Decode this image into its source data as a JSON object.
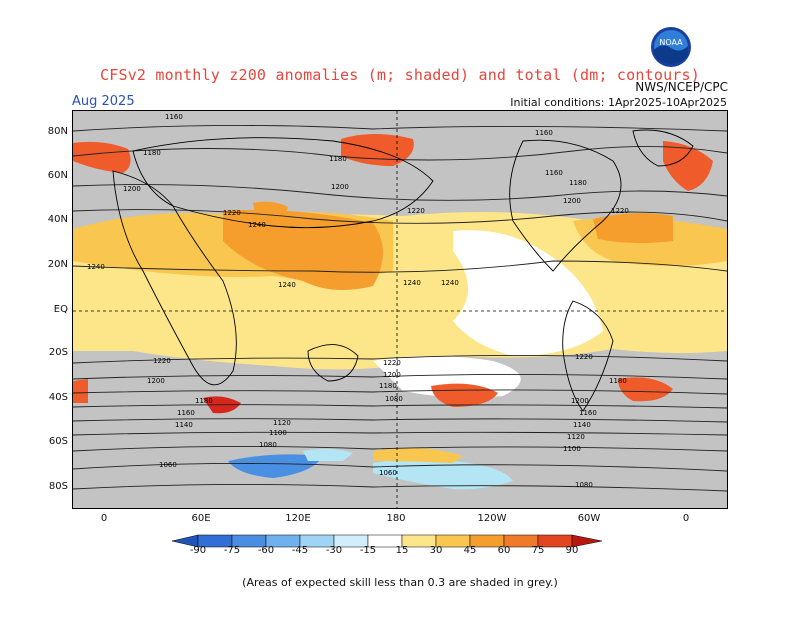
{
  "header": {
    "title": "CFSv2 monthly z200 anomalies (m; shaded) and total (dm; contours)",
    "agency": "NWS/NCEP/CPC",
    "month": "Aug 2025",
    "initial_conditions": "Initial conditions: 1Apr2025-10Apr2025",
    "logo_text": "NOAA"
  },
  "map": {
    "lat_labels": [
      "80N",
      "60N",
      "40N",
      "20N",
      "EQ",
      "20S",
      "40S",
      "60S",
      "80S"
    ],
    "lon_labels": [
      "0",
      "60E",
      "120E",
      "180",
      "120W",
      "60W",
      "0"
    ],
    "contour_labels": [
      "1160",
      "1180",
      "1200",
      "1220",
      "1240",
      "1240",
      "1240",
      "1240",
      "1240",
      "1220",
      "1220",
      "1200",
      "1200",
      "1180",
      "1180",
      "1160",
      "1140",
      "1120",
      "1100",
      "1080",
      "1060",
      "1080",
      "1100",
      "1120",
      "1140",
      "1160",
      "1180",
      "1200",
      "1220",
      "1060",
      "1080",
      "1180",
      "1160",
      "1200",
      "1220",
      "1220",
      "1200",
      "1180",
      "1160"
    ],
    "colors": {
      "grey": "#c3c3c3",
      "pale_yellow": "#fde68a",
      "yellow": "#f9c74f",
      "orange": "#f59e2e",
      "red_orange": "#ef5b2a",
      "red": "#d7261e",
      "light_blue": "#b3e5f5",
      "blue": "#4a90e2"
    }
  },
  "colorbar": {
    "labels": [
      "-90",
      "-75",
      "-60",
      "-45",
      "-30",
      "-15",
      "15",
      "30",
      "45",
      "60",
      "75",
      "90"
    ],
    "colors": [
      "#1f54b8",
      "#2f6fd6",
      "#4a8ee3",
      "#6fb0ee",
      "#9fd4f5",
      "#d2edfb",
      "#ffffff",
      "#fde68a",
      "#f9c74f",
      "#f59e2e",
      "#ef7b2a",
      "#e2461e",
      "#b8190f"
    ]
  },
  "footer": {
    "note": "(Areas of expected skill less than 0.3 are shaded in grey.)"
  }
}
